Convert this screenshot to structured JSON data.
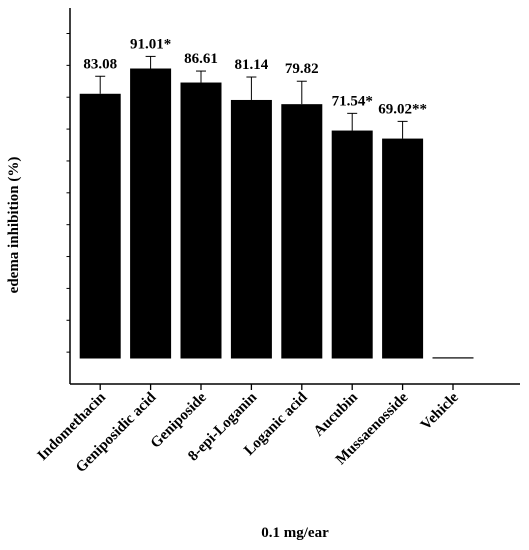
{
  "chart_data": {
    "type": "bar",
    "xlabel": "0.1 mg/ear",
    "ylabel": "edema inhibition (%)",
    "ylim": [
      -8,
      110
    ],
    "yticks": [
      0,
      20,
      40,
      60,
      80,
      100
    ],
    "grid": false,
    "legend": "none",
    "bar_color": "#000000",
    "categories": [
      "Indomethacin",
      "Geniposidic acid",
      "Geniposide",
      "8-epi-Loganin",
      "Loganic acid",
      "Aucubin",
      "Mussaenosside",
      "Vehicle"
    ],
    "values": [
      83.08,
      91.01,
      86.61,
      81.14,
      79.82,
      71.54,
      69.02,
      0.2
    ],
    "errors": [
      5.5,
      3.8,
      3.6,
      7.2,
      7.2,
      5.4,
      5.4,
      0
    ],
    "data_labels": [
      "83.08",
      "91.01*",
      "86.61",
      "81.14",
      "79.82",
      "71.54*",
      "69.02**",
      ""
    ]
  }
}
